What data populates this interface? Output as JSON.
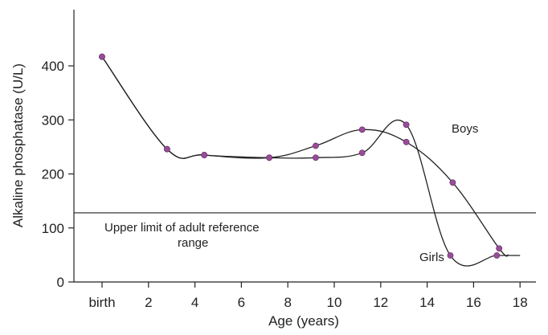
{
  "chart_data": {
    "type": "line",
    "xlabel": "Age (years)",
    "ylabel": "Alkaline phosphatase (U/L)",
    "xlim": [
      -0.8,
      18
    ],
    "ylim": [
      0,
      450
    ],
    "x_ticks": [
      {
        "value": 0,
        "label": "birth"
      },
      {
        "value": 2,
        "label": "2"
      },
      {
        "value": 4,
        "label": "4"
      },
      {
        "value": 6,
        "label": "6"
      },
      {
        "value": 8,
        "label": "8"
      },
      {
        "value": 10,
        "label": "10"
      },
      {
        "value": 12,
        "label": "12"
      },
      {
        "value": 14,
        "label": "14"
      },
      {
        "value": 16,
        "label": "16"
      },
      {
        "value": 18,
        "label": "18"
      }
    ],
    "y_ticks": [
      {
        "value": 0,
        "label": "0"
      },
      {
        "value": 100,
        "label": "100"
      },
      {
        "value": 200,
        "label": "200"
      },
      {
        "value": 300,
        "label": "300"
      },
      {
        "value": 400,
        "label": "400"
      }
    ],
    "grid": false,
    "reference_line": {
      "value": 128,
      "label": "Upper limit of adult reference range"
    },
    "series": [
      {
        "name": "Boys",
        "x": [
          0,
          2.8,
          4.4,
          7.2,
          9.2,
          11.2,
          13.1,
          15.1,
          17.1
        ],
        "y": [
          417,
          246,
          235,
          230,
          252,
          282,
          259,
          184,
          62
        ],
        "curve_end": [
          17.5,
          50
        ]
      },
      {
        "name": "Girls",
        "x": [
          0,
          2.8,
          4.4,
          7.2,
          9.2,
          11.2,
          13.1,
          15.0,
          17.0
        ],
        "y": [
          417,
          246,
          235,
          230,
          230,
          239,
          291,
          49,
          49
        ],
        "curve_end": [
          18,
          49
        ]
      }
    ],
    "marker_color": "#9a4c9a",
    "line_color": "#222222"
  }
}
